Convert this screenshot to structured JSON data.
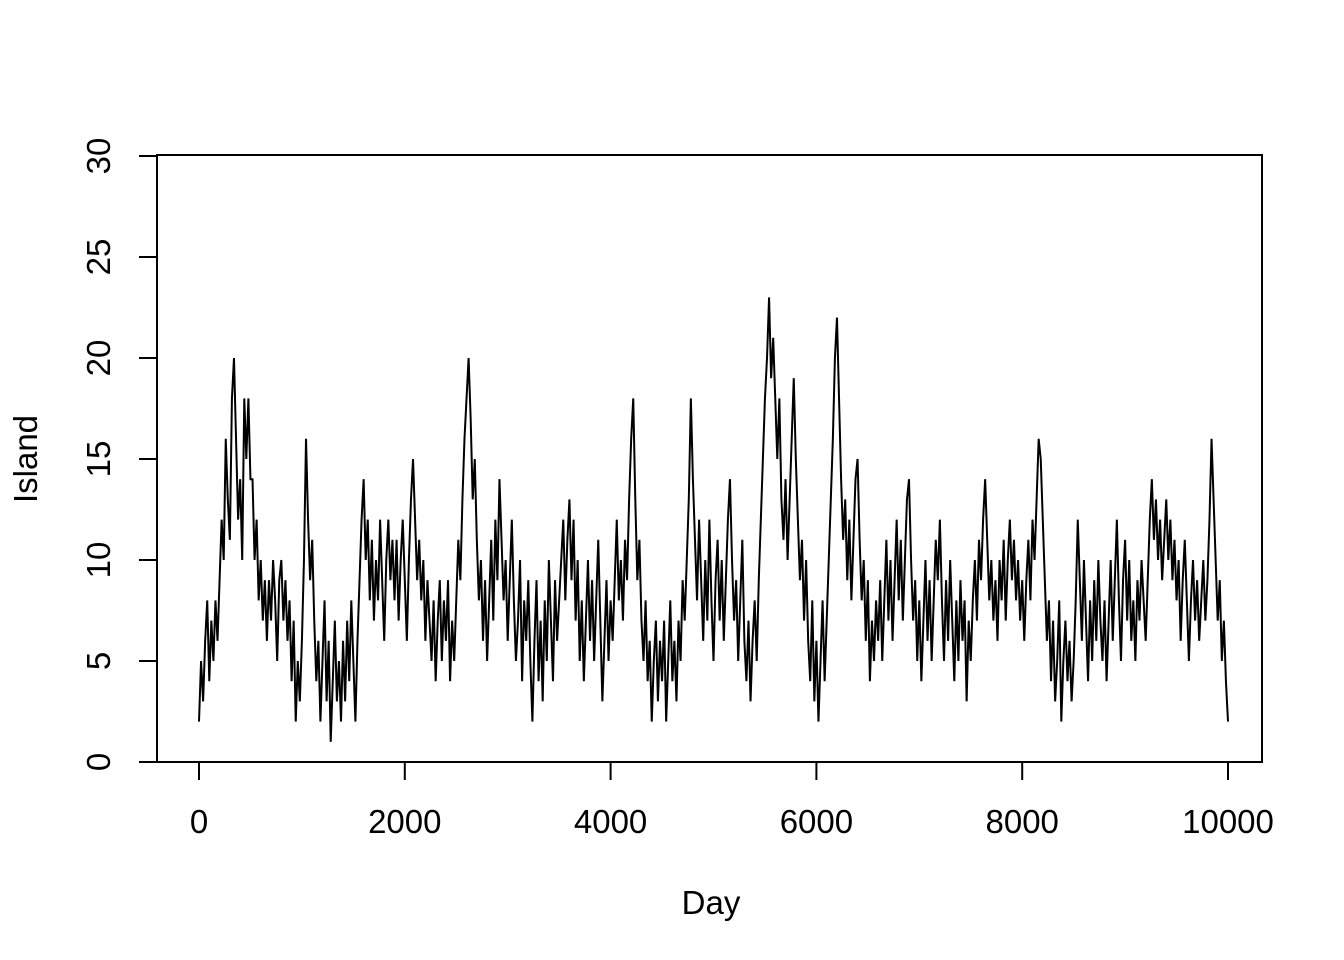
{
  "chart_data": {
    "type": "line",
    "title": "",
    "xlabel": "Day",
    "ylabel": "Island",
    "xlim": [
      0,
      10000
    ],
    "ylim": [
      0,
      30
    ],
    "x_ticks": [
      0,
      2000,
      4000,
      6000,
      8000,
      10000
    ],
    "y_ticks": [
      0,
      5,
      10,
      15,
      20,
      25,
      30
    ],
    "legend": null,
    "grid": false,
    "line_color": "#000000",
    "background_color": "#ffffff",
    "x_start": 0,
    "x_step": 20,
    "values": [
      2,
      5,
      3,
      6,
      8,
      4,
      7,
      5,
      8,
      6,
      9,
      12,
      10,
      16,
      13,
      11,
      18,
      20,
      16,
      12,
      14,
      10,
      18,
      15,
      18,
      14,
      14,
      10,
      12,
      8,
      10,
      7,
      9,
      6,
      9,
      7,
      10,
      8,
      5,
      9,
      10,
      7,
      9,
      6,
      8,
      4,
      7,
      2,
      5,
      3,
      6,
      10,
      16,
      12,
      9,
      11,
      7,
      4,
      6,
      2,
      5,
      8,
      3,
      6,
      1,
      4,
      7,
      3,
      5,
      2,
      6,
      3,
      7,
      4,
      8,
      5,
      2,
      6,
      9,
      12,
      14,
      10,
      12,
      8,
      11,
      7,
      10,
      8,
      12,
      9,
      6,
      10,
      12,
      9,
      11,
      8,
      11,
      7,
      10,
      12,
      9,
      6,
      10,
      13,
      15,
      12,
      9,
      11,
      8,
      10,
      6,
      9,
      7,
      5,
      8,
      4,
      7,
      9,
      5,
      8,
      6,
      9,
      4,
      7,
      5,
      8,
      11,
      9,
      13,
      16,
      18,
      20,
      17,
      13,
      15,
      11,
      8,
      10,
      6,
      9,
      5,
      8,
      11,
      7,
      12,
      9,
      14,
      11,
      8,
      10,
      6,
      9,
      12,
      8,
      5,
      7,
      10,
      4,
      8,
      6,
      9,
      5,
      2,
      6,
      9,
      4,
      7,
      3,
      8,
      5,
      10,
      7,
      4,
      9,
      6,
      8,
      10,
      12,
      8,
      11,
      13,
      9,
      12,
      7,
      10,
      5,
      8,
      4,
      7,
      10,
      6,
      9,
      5,
      8,
      11,
      7,
      3,
      6,
      9,
      5,
      8,
      6,
      9,
      12,
      8,
      10,
      7,
      11,
      9,
      13,
      16,
      18,
      13,
      9,
      11,
      7,
      5,
      8,
      4,
      6,
      2,
      5,
      7,
      3,
      6,
      4,
      7,
      2,
      5,
      8,
      4,
      6,
      3,
      7,
      5,
      9,
      7,
      10,
      13,
      18,
      14,
      11,
      8,
      12,
      9,
      6,
      10,
      7,
      12,
      8,
      5,
      9,
      11,
      7,
      10,
      6,
      9,
      12,
      14,
      10,
      7,
      9,
      5,
      8,
      11,
      6,
      4,
      7,
      3,
      6,
      8,
      5,
      9,
      12,
      15,
      18,
      20,
      23,
      19,
      21,
      18,
      15,
      18,
      13,
      11,
      14,
      10,
      13,
      16,
      19,
      15,
      12,
      9,
      11,
      7,
      10,
      6,
      4,
      8,
      3,
      6,
      2,
      5,
      8,
      4,
      7,
      10,
      13,
      16,
      20,
      22,
      18,
      14,
      11,
      13,
      9,
      12,
      8,
      11,
      14,
      15,
      11,
      8,
      10,
      6,
      9,
      4,
      7,
      5,
      8,
      6,
      9,
      5,
      8,
      11,
      7,
      10,
      6,
      9,
      12,
      8,
      11,
      7,
      10,
      13,
      14,
      10,
      7,
      9,
      5,
      8,
      4,
      7,
      10,
      6,
      9,
      5,
      8,
      11,
      9,
      12,
      8,
      5,
      9,
      6,
      10,
      7,
      4,
      8,
      5,
      9,
      6,
      8,
      3,
      7,
      5,
      8,
      10,
      7,
      11,
      9,
      12,
      14,
      11,
      8,
      10,
      7,
      9,
      6,
      10,
      8,
      11,
      7,
      10,
      12,
      9,
      11,
      8,
      10,
      7,
      9,
      6,
      9,
      11,
      8,
      12,
      10,
      13,
      16,
      15,
      12,
      9,
      6,
      8,
      4,
      7,
      3,
      5,
      8,
      2,
      5,
      7,
      4,
      6,
      3,
      5,
      8,
      12,
      9,
      6,
      10,
      7,
      4,
      8,
      5,
      9,
      6,
      10,
      7,
      5,
      8,
      4,
      7,
      10,
      6,
      9,
      12,
      8,
      5,
      9,
      11,
      7,
      10,
      6,
      8,
      5,
      9,
      7,
      10,
      8,
      6,
      9,
      12,
      14,
      11,
      13,
      10,
      12,
      9,
      11,
      13,
      10,
      12,
      9,
      11,
      8,
      10,
      6,
      9,
      11,
      8,
      5,
      8,
      10,
      7,
      9,
      6,
      8,
      10,
      7,
      9,
      12,
      16,
      13,
      10,
      7,
      9,
      5,
      7,
      4,
      2
    ]
  }
}
